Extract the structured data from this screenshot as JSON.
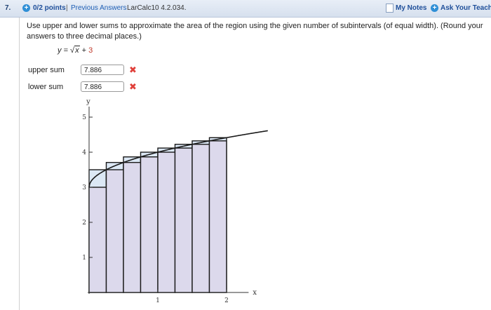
{
  "header": {
    "question_number": "7.",
    "points": "0/2 points",
    "separator": "|",
    "previous_answers": "Previous Answers",
    "problem_code": "LarCalc10 4.2.034.",
    "my_notes": "My Notes",
    "ask_teacher": "Ask Your Teacher"
  },
  "question": {
    "prompt": "Use upper and lower sums to approximate the area of the region using the given number of subintervals (of equal width). (Round your answers to three decimal places.)",
    "equation": {
      "lhs": "y =",
      "radical": "√",
      "radicand": "x",
      "plus": "+",
      "constant": "3"
    }
  },
  "answers": {
    "upper_label": "upper sum",
    "upper_value": "7.886",
    "lower_label": "lower sum",
    "lower_value": "7.886",
    "incorrect_mark": "✖"
  },
  "chart_data": {
    "type": "area",
    "function": "sqrt(x) + 3",
    "xlabel": "x",
    "ylabel": "y",
    "xlim": [
      -0.04,
      2.3
    ],
    "ylim": [
      -0.05,
      5.3
    ],
    "x_ticks": [
      1,
      2
    ],
    "y_ticks": [
      1,
      2,
      3,
      4,
      5
    ],
    "interval": [
      0,
      2
    ],
    "subintervals": 8,
    "upper_rectangles": [
      {
        "x0": 0,
        "x1": 0.25,
        "height": 3.5
      },
      {
        "x0": 0.25,
        "x1": 0.5,
        "height": 3.707
      },
      {
        "x0": 0.5,
        "x1": 0.75,
        "height": 3.866
      },
      {
        "x0": 0.75,
        "x1": 1.0,
        "height": 4.0
      },
      {
        "x0": 1.0,
        "x1": 1.25,
        "height": 4.118
      },
      {
        "x0": 1.25,
        "x1": 1.5,
        "height": 4.225
      },
      {
        "x0": 1.5,
        "x1": 1.75,
        "height": 4.323
      },
      {
        "x0": 1.75,
        "x1": 2.0,
        "height": 4.414
      }
    ],
    "lower_rectangles": [
      {
        "x0": 0,
        "x1": 0.25,
        "height": 3.0
      },
      {
        "x0": 0.25,
        "x1": 0.5,
        "height": 3.5
      },
      {
        "x0": 0.5,
        "x1": 0.75,
        "height": 3.707
      },
      {
        "x0": 0.75,
        "x1": 1.0,
        "height": 3.866
      },
      {
        "x0": 1.0,
        "x1": 1.25,
        "height": 4.0
      },
      {
        "x0": 1.25,
        "x1": 1.5,
        "height": 4.118
      },
      {
        "x0": 1.5,
        "x1": 1.75,
        "height": 4.225
      },
      {
        "x0": 1.75,
        "x1": 2.0,
        "height": 4.323
      }
    ],
    "colors": {
      "upper_fill": "#dce8f5",
      "lower_fill": "#dcd9ec",
      "stroke": "#1a1a1a"
    }
  },
  "colors": {
    "header_text": "#1f4f9a",
    "link": "#1f5fb5",
    "incorrect": "#e0403a",
    "constant": "#c0392b"
  }
}
